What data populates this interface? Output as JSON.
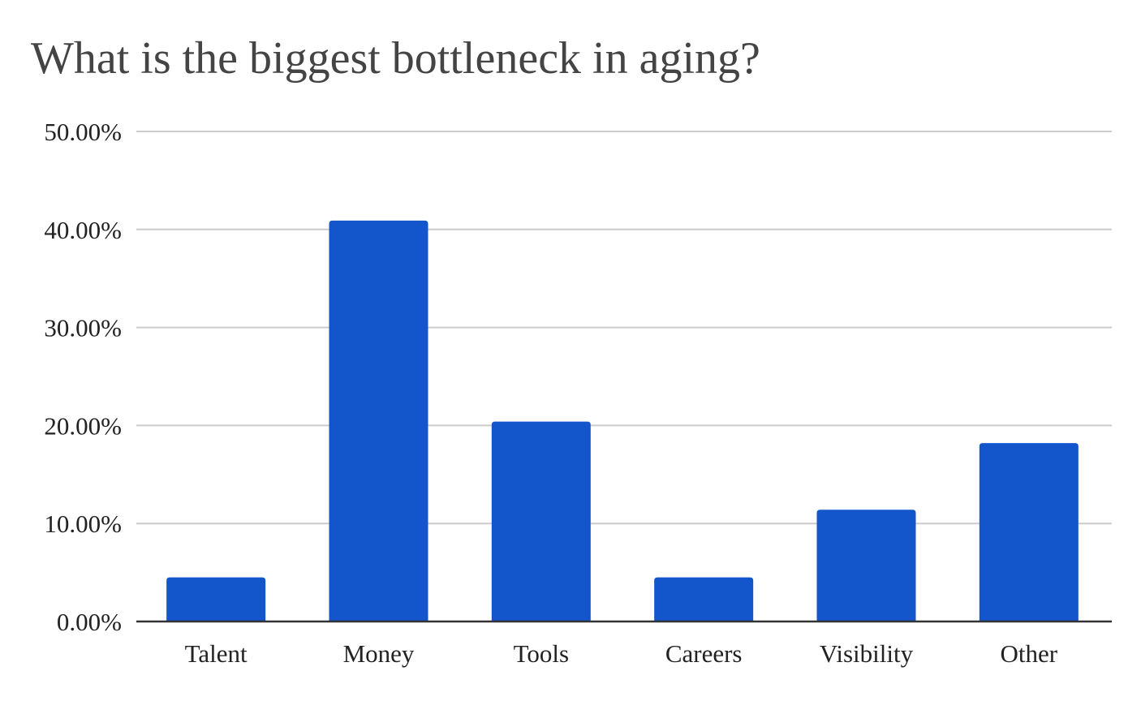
{
  "chart_data": {
    "type": "bar",
    "title": "What is the biggest bottleneck in aging?",
    "categories": [
      "Talent",
      "Money",
      "Tools",
      "Careers",
      "Visibility",
      "Other"
    ],
    "values": [
      4.5,
      40.9,
      20.4,
      4.5,
      11.4,
      18.2
    ],
    "ylim": [
      0,
      50
    ],
    "yticks": [
      "0.00%",
      "10.00%",
      "20.00%",
      "30.00%",
      "40.00%",
      "50.00%"
    ],
    "xlabel": "",
    "ylabel": "",
    "grid": true,
    "legend": "none",
    "bar_color": "#1356cc",
    "grid_color": "#cccccc",
    "axis_color": "#333333"
  }
}
